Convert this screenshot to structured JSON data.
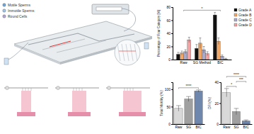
{
  "diagram": {
    "labels": [
      "Motile Sperms",
      "Immotile Sperms",
      "Round Cells"
    ]
  },
  "chart_data": [
    {
      "type": "bar",
      "y_label": "Percentage of Four Category [%]",
      "categories": [
        "Raw",
        "SG Method",
        "BIC"
      ],
      "series": [
        {
          "name": "Grade A",
          "color": "#111111",
          "values": [
            8,
            17,
            68
          ],
          "errors": [
            3,
            6,
            4
          ]
        },
        {
          "name": "Grade B",
          "color": "#f0a868",
          "values": [
            10,
            25,
            28
          ],
          "errors": [
            3,
            8,
            5
          ]
        },
        {
          "name": "Grade C",
          "color": "#a9a9c9",
          "values": [
            12,
            15,
            5
          ],
          "errors": [
            3,
            5,
            2
          ]
        },
        {
          "name": "Grade D",
          "color": "#f2a3a3",
          "values": [
            30,
            9,
            1
          ],
          "errors": [
            4,
            3,
            1
          ]
        }
      ],
      "ylim": [
        0,
        80
      ],
      "yticks": [
        0,
        20,
        40,
        60,
        80
      ],
      "grid": false,
      "legend": "right",
      "annotations": [
        {
          "text": "*",
          "between": [
            "Raw",
            "BIC"
          ]
        }
      ]
    },
    {
      "type": "bar",
      "y_label": "Total Motility (%)",
      "categories": [
        "Raw",
        "SG",
        "BIC"
      ],
      "values": [
        45,
        72,
        95
      ],
      "errors": [
        8,
        7,
        3
      ],
      "colors": [
        "#d9d9d9",
        "#a0a0a0",
        "#6f86ad"
      ],
      "ylim": [
        0,
        120
      ],
      "yticks": [
        0,
        50,
        100
      ],
      "grid": false,
      "annotations": [
        {
          "text": "****",
          "between": [
            "Raw",
            "BIC"
          ]
        }
      ]
    },
    {
      "type": "bar",
      "y_label": "DFI (%)",
      "categories": [
        "Raw",
        "SG",
        "BIC"
      ],
      "values": [
        30,
        12,
        3
      ],
      "errors": [
        4,
        3,
        1
      ],
      "colors": [
        "#d9d9d9",
        "#a0a0a0",
        "#6f86ad"
      ],
      "ylim": [
        0,
        40
      ],
      "yticks": [
        0,
        20,
        40
      ],
      "grid": false,
      "annotations": [
        {
          "text": "*",
          "between": [
            "Raw",
            "SG"
          ]
        },
        {
          "text": "***",
          "between": [
            "SG",
            "BIC"
          ]
        },
        {
          "text": "****",
          "between": [
            "Raw",
            "BIC"
          ]
        }
      ]
    }
  ]
}
